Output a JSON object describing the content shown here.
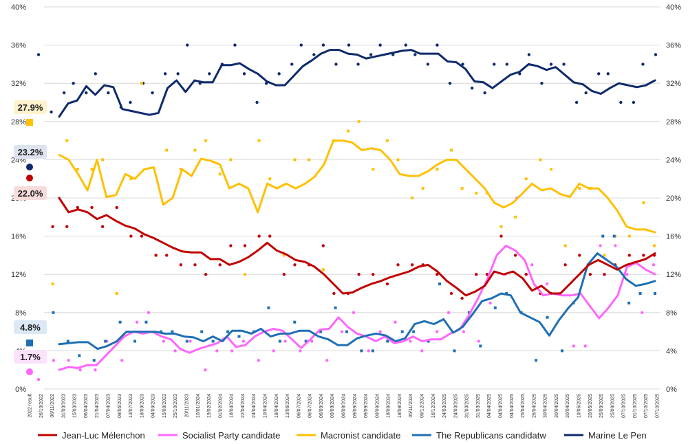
{
  "chart_data": {
    "type": "line",
    "title": "",
    "xlabel": "",
    "ylabel": "",
    "ylim": [
      0,
      40
    ],
    "y_ticks": [
      "0%",
      "4%",
      "8%",
      "12%",
      "16%",
      "20%",
      "24%",
      "28%",
      "32%",
      "36%",
      "40%"
    ],
    "grid": true,
    "legend_position": "bottom",
    "x_ticks": [
      "2022 result",
      "26/10/2022",
      "06/11/2022",
      "31/03/2023",
      "15/03/2023",
      "06/04/2023",
      "21/04/2023",
      "07/04/2023",
      "08/05/2023",
      "13/07/2023",
      "18/09/2023",
      "04/09/2023",
      "15/09/2023",
      "25/10/2023",
      "20/11/2023",
      "10/01/2024",
      "19/02/2024",
      "01/02/2024",
      "18/04/2024",
      "22/04/2024",
      "24/04/2024",
      "10/04/2024",
      "18/04/2024",
      "13/06/2024",
      "06/07/2024",
      "06/07/2024",
      "06/09/2024",
      "09/09/2024",
      "06/09/2024",
      "09/09/2024",
      "09/09/2024",
      "09/09/2024",
      "18/09/2024",
      "18/09/2024",
      "05/11/2024",
      "09/12/2024",
      "16/12/2024",
      "24/03/2025",
      "24/03/2025",
      "31/03/2025",
      "31/03/2025",
      "04/04/2025",
      "04/04/2025",
      "04/04/2025",
      "25/04/2025",
      "25/04/2025",
      "30/04/2025",
      "30/04/2025",
      "30/04/2025",
      "19/05/2025",
      "20/05/2025",
      "25/09/2025",
      "25/09/2025",
      "07/10/2025",
      "01/10/2025",
      "07/10/2025",
      "07/10/2025"
    ],
    "result_labels": [
      {
        "name": "Macronist candidate",
        "value": 27.9,
        "text": "27.9%",
        "color": "#FFC000",
        "bg": "#FFF2CC"
      },
      {
        "name": "Marine Le Pen",
        "value": 23.2,
        "text": "23.2%",
        "color": "#0E2A6B",
        "bg": "#DDE4F0"
      },
      {
        "name": "Jean-Luc Mélenchon",
        "value": 22.0,
        "text": "22.0%",
        "color": "#C00000",
        "bg": "#F8DCDC"
      },
      {
        "name": "The Republicans candidatw",
        "value": 4.8,
        "text": "4.8%",
        "color": "#1F6FB5",
        "bg": "#DCE8F5"
      },
      {
        "name": "Socialist Party candidate",
        "value": 1.7,
        "text": "1.7%",
        "color": "#FF66FF",
        "bg": "#FCE1FC"
      }
    ],
    "series": [
      {
        "name": "Marine Le Pen",
        "color": "#0E2A6B",
        "values": [
          28.5,
          29.9,
          30.2,
          31.7,
          30.8,
          31.8,
          31.6,
          29.3,
          29.1,
          28.9,
          28.7,
          28.9,
          31.5,
          32.3,
          31.1,
          32.3,
          32.1,
          32.1,
          33.9,
          33.9,
          34.1,
          33.5,
          33.0,
          32.2,
          31.8,
          31.8,
          32.8,
          33.8,
          34.4,
          35.1,
          35.5,
          35.5,
          35.1,
          35.0,
          34.6,
          34.8,
          35.0,
          35.2,
          35.4,
          35.5,
          35.1,
          35.1,
          35.1,
          34.3,
          34.2,
          33.5,
          32.2,
          32.1,
          31.5,
          32.2,
          32.9,
          33.2,
          34.0,
          33.8,
          33.4,
          33.7,
          32.9,
          32.1,
          31.9,
          31.2,
          30.9,
          31.5,
          32.0,
          31.8,
          31.6,
          31.8,
          32.3
        ],
        "dots": [
          35.0,
          29.0,
          31.0,
          32.0,
          31.0,
          33.0,
          31.0,
          29.5,
          30.0,
          32.0,
          31.0,
          33.0,
          33.0,
          36.0,
          32.0,
          33.0,
          34.0,
          36.0,
          33.0,
          30.0,
          32.0,
          33.0,
          34.0,
          36.0,
          35.0,
          36.0,
          34.0,
          36.0,
          34.0,
          35.0,
          36.0,
          35.0,
          36.0,
          35.0,
          34.0,
          36.0,
          32.0,
          34.0,
          31.5,
          31.0,
          34.0,
          34.0,
          33.0,
          35.0,
          32.0,
          34.0,
          34.0,
          30.0,
          31.0,
          33.0,
          33.0,
          30.0,
          30.0,
          34.0,
          35.0
        ]
      },
      {
        "name": "Macronist candidate",
        "color": "#FFC000",
        "values": [
          24.5,
          24.0,
          22.5,
          20.8,
          24.0,
          20.1,
          20.3,
          22.5,
          22.0,
          23.0,
          23.2,
          19.3,
          20.0,
          23.0,
          22.3,
          24.1,
          23.9,
          23.5,
          21.0,
          21.5,
          21.0,
          18.5,
          21.5,
          21.0,
          21.5,
          21.0,
          21.5,
          22.2,
          23.5,
          26.0,
          26.0,
          25.8,
          25.0,
          25.2,
          25.0,
          24.0,
          22.5,
          22.3,
          22.3,
          22.8,
          23.5,
          24.0,
          24.0,
          23.0,
          22.0,
          21.0,
          19.5,
          19.0,
          19.5,
          20.5,
          21.5,
          20.8,
          21.0,
          20.4,
          20.1,
          21.5,
          21.0,
          21.0,
          20.0,
          18.7,
          17.0,
          16.7,
          16.7,
          16.4
        ],
        "dots": [
          30.0,
          11.0,
          26.0,
          23.0,
          23.0,
          24.0,
          10.0,
          22.0,
          32.0,
          14.0,
          25.0,
          23.0,
          25.0,
          26.0,
          22.5,
          24.0,
          12.0,
          26.0,
          22.0,
          14.0,
          24.0,
          24.0,
          12.5,
          26.0,
          27.0,
          28.0,
          23.0,
          26.0,
          24.0,
          20.0,
          21.0,
          23.0,
          25.0,
          21.0,
          20.5,
          20.5,
          17.0,
          18.0,
          22.0,
          24.0,
          23.0,
          15.0,
          21.0,
          21.0,
          14.0,
          16.0,
          16.0,
          19.5,
          15.0
        ]
      },
      {
        "name": "Jean-Luc Mélenchon",
        "color": "#C00000",
        "values": [
          20.0,
          18.5,
          18.8,
          18.5,
          17.8,
          18.2,
          17.6,
          17.1,
          16.8,
          16.2,
          15.8,
          15.3,
          14.8,
          14.4,
          14.3,
          14.3,
          13.6,
          13.6,
          13.0,
          13.3,
          13.8,
          14.5,
          15.3,
          14.5,
          14.1,
          13.5,
          13.3,
          12.8,
          12.0,
          11.0,
          10.0,
          10.1,
          10.6,
          11.0,
          11.3,
          11.7,
          12.0,
          12.3,
          12.8,
          13.0,
          12.3,
          11.3,
          10.6,
          9.8,
          10.2,
          10.8,
          12.3,
          12.0,
          12.3,
          11.6,
          10.3,
          10.8,
          10.0,
          10.0,
          11.0,
          12.0,
          13.0,
          13.5,
          13.0,
          12.5,
          13.0,
          13.3,
          13.6,
          14.2
        ],
        "dots": [
          20.0,
          17.0,
          17.0,
          19.0,
          19.0,
          17.0,
          19.0,
          16.0,
          16.0,
          14.0,
          14.0,
          13.0,
          13.0,
          12.0,
          13.0,
          15.0,
          15.0,
          16.0,
          16.0,
          12.0,
          13.0,
          13.0,
          15.0,
          10.0,
          10.0,
          12.0,
          12.0,
          11.0,
          13.0,
          13.0,
          13.0,
          12.0,
          10.0,
          9.5,
          12.0,
          12.0,
          16.0,
          14.0,
          12.0,
          10.0,
          10.0,
          13.0,
          14.0,
          12.0,
          12.0,
          13.0,
          14.0,
          14.0,
          14.0
        ]
      },
      {
        "name": "Socialist Party candidate",
        "color": "#FF66FF",
        "values": [
          2.0,
          2.3,
          2.2,
          2.5,
          2.5,
          3.5,
          4.5,
          5.5,
          6.0,
          5.8,
          6.0,
          5.5,
          5.2,
          4.2,
          3.8,
          4.2,
          4.5,
          4.8,
          5.5,
          4.4,
          4.6,
          5.5,
          6.0,
          6.3,
          6.1,
          5.2,
          4.3,
          5.2,
          6.2,
          6.3,
          7.5,
          6.5,
          5.8,
          5.5,
          5.0,
          5.5,
          4.8,
          5.0,
          5.5,
          5.0,
          5.2,
          5.2,
          5.8,
          6.2,
          7.7,
          9.5,
          11.5,
          14.0,
          15.0,
          14.5,
          13.5,
          11.0,
          9.8,
          10.0,
          9.8,
          9.8,
          10.0,
          8.7,
          7.4,
          8.5,
          9.8,
          12.8,
          13.2,
          12.5,
          12.0
        ],
        "dots": [
          1.0,
          3.0,
          3.0,
          2.0,
          2.0,
          5.0,
          3.0,
          7.0,
          8.0,
          5.0,
          4.0,
          5.0,
          2.0,
          4.0,
          4.0,
          5.0,
          3.0,
          4.0,
          5.0,
          4.0,
          5.0,
          3.0,
          6.0,
          8.0,
          4.0,
          6.0,
          7.0,
          5.0,
          4.0,
          6.0,
          8.0,
          6.0,
          5.0,
          9.0,
          12.0,
          20.0,
          13.0,
          11.0,
          10.0,
          4.5,
          4.5,
          15.0,
          15.0,
          12.0,
          8.0,
          13.0
        ]
      },
      {
        "name": "The Republicans candidatw",
        "color": "#1F6FB5",
        "values": [
          4.7,
          4.8,
          4.9,
          4.9,
          4.2,
          4.5,
          5.0,
          6.0,
          6.0,
          6.0,
          6.0,
          5.8,
          5.8,
          5.5,
          5.4,
          5.0,
          5.5,
          5.0,
          6.1,
          6.1,
          5.8,
          6.3,
          5.5,
          5.8,
          5.8,
          6.1,
          6.1,
          5.5,
          5.2,
          4.6,
          4.6,
          5.3,
          5.6,
          5.8,
          5.6,
          5.0,
          5.3,
          6.8,
          7.1,
          6.8,
          7.3,
          5.9,
          6.5,
          7.8,
          9.2,
          9.5,
          10.0,
          9.8,
          8.0,
          7.5,
          7.0,
          5.6,
          7.2,
          8.5,
          9.6,
          13.0,
          14.2,
          13.5,
          12.8,
          11.5,
          10.8,
          11.0,
          11.3
        ],
        "dots": [
          3.0,
          8.0,
          5.0,
          3.5,
          3.0,
          5.0,
          7.0,
          5.0,
          7.0,
          6.0,
          6.0,
          5.0,
          6.0,
          5.0,
          6.0,
          5.5,
          6.0,
          8.5,
          5.0,
          7.0,
          5.0,
          6.0,
          8.5,
          6.0,
          4.0,
          4.0,
          5.0,
          6.0,
          6.0,
          5.0,
          11.0,
          4.0,
          8.0,
          4.5,
          8.5,
          10.0,
          8.0,
          3.0,
          7.5,
          4.0,
          9.0,
          13.0,
          16.0,
          16.0,
          9.0,
          10.0,
          10.0
        ]
      }
    ]
  }
}
